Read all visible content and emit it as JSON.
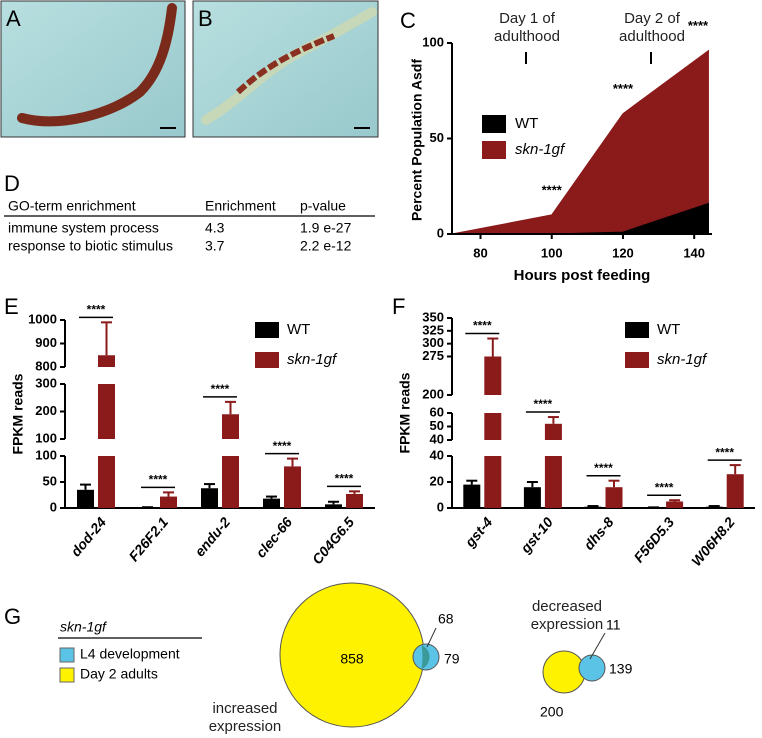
{
  "panel_labels": [
    "A",
    "B",
    "C",
    "D",
    "E",
    "F",
    "G"
  ],
  "table": {
    "header": [
      "GO-term enrichment",
      "Enrichment",
      "p-value"
    ],
    "rows": [
      [
        "immune system process",
        4.3,
        "1.9 e-27"
      ],
      [
        "response to biotic stimulus",
        3.7,
        "2.2 e-12"
      ]
    ]
  },
  "chart_data": [
    {
      "type": "area",
      "y_label": "Percent Population Asdf",
      "x_label": "Hours post feeding",
      "x": [
        72,
        100,
        120,
        144
      ],
      "series": [
        {
          "name": "WT",
          "color": "#000000",
          "values": [
            0,
            0,
            1,
            16
          ]
        },
        {
          "name": "skn-1gf",
          "color": "#8b1a1a",
          "values": [
            0,
            10,
            63,
            96
          ]
        }
      ],
      "significance": [
        null,
        "****",
        "****",
        "****"
      ],
      "annotations": [
        "Day 1 of adulthood",
        "Day 2 of adulthood"
      ],
      "xlim": [
        72,
        145
      ],
      "ylim": [
        0,
        100
      ],
      "xticks": [
        80,
        100,
        120,
        140
      ],
      "yticks": [
        0,
        50,
        100
      ]
    },
    {
      "type": "bar",
      "y_label": "FPKM reads",
      "categories": [
        "dod-24",
        "F26F2.1",
        "endu-2",
        "clec-66",
        "C04G6.5"
      ],
      "series": [
        {
          "name": "WT",
          "color": "#000000",
          "values": [
            35,
            1,
            38,
            18,
            7
          ],
          "errors": [
            10,
            0.5,
            8,
            4,
            5
          ]
        },
        {
          "name": "skn-1gf",
          "color": "#8b1a1a",
          "values": [
            850,
            22,
            190,
            80,
            27
          ],
          "errors": [
            140,
            8,
            45,
            15,
            5
          ]
        }
      ],
      "significance": [
        "****",
        "****",
        "****",
        "****",
        "****"
      ],
      "y_segments": [
        {
          "ylim": [
            0,
            100
          ],
          "yticks": [
            0,
            50,
            100
          ]
        },
        {
          "ylim": [
            100,
            300
          ],
          "yticks": [
            100,
            200,
            300
          ]
        },
        {
          "ylim": [
            800,
            1000
          ],
          "yticks": [
            800,
            900,
            1000
          ]
        }
      ]
    },
    {
      "type": "bar",
      "y_label": "FPKM reads",
      "categories": [
        "gst-4",
        "gst-10",
        "dhs-8",
        "F56D5.3",
        "W06H8.2"
      ],
      "series": [
        {
          "name": "WT",
          "color": "#000000",
          "values": [
            18,
            16,
            1,
            0.3,
            1
          ],
          "errors": [
            3,
            4,
            0.5,
            0.2,
            0.5
          ]
        },
        {
          "name": "skn-1gf",
          "color": "#8b1a1a",
          "values": [
            275,
            52,
            16,
            5,
            26
          ],
          "errors": [
            35,
            5,
            5,
            1,
            7
          ]
        }
      ],
      "significance": [
        "****",
        "****",
        "****",
        "****",
        "****"
      ],
      "y_segments": [
        {
          "ylim": [
            0,
            40
          ],
          "yticks": [
            0,
            20,
            40
          ]
        },
        {
          "ylim": [
            40,
            60
          ],
          "yticks": [
            40,
            50,
            60
          ]
        },
        {
          "ylim": [
            200,
            350
          ],
          "yticks": [
            200,
            275,
            300,
            325,
            350
          ]
        }
      ]
    }
  ],
  "venn": {
    "legend_title": "skn-1gf",
    "legend": [
      {
        "label": "L4 development",
        "color": "#5bc4e6"
      },
      {
        "label": "Day 2 adults",
        "color": "#fff200"
      }
    ],
    "increased": {
      "label": "increased expression",
      "day2_only": 858,
      "overlap": 68,
      "l4_only": 79
    },
    "decreased": {
      "label": "decreased expression",
      "day2_only": 200,
      "overlap": 11,
      "l4_only": 139
    }
  }
}
